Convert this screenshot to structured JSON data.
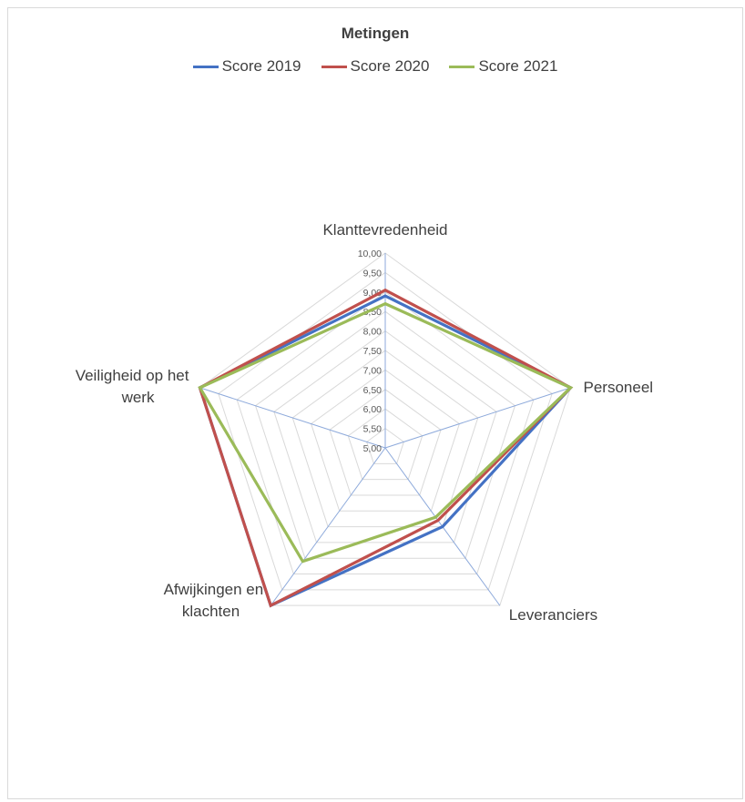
{
  "chart_data": {
    "type": "radar",
    "title": "Metingen",
    "categories": [
      "Klanttevredenheid",
      "Personeel",
      "Leveranciers",
      "Afwijkingen en klachten",
      "Veiligheid op het werk"
    ],
    "category_lines": [
      [
        "Klanttevredenheid"
      ],
      [
        "Personeel"
      ],
      [
        "Leveranciers"
      ],
      [
        "Afwijkingen en",
        "klachten"
      ],
      [
        "Veiligheid op het",
        "werk"
      ]
    ],
    "rlim": [
      5.0,
      10.0
    ],
    "ticks": [
      "5,00",
      "5,50",
      "6,00",
      "6,50",
      "7,00",
      "7,50",
      "8,00",
      "8,50",
      "9,00",
      "9,50",
      "10,00"
    ],
    "tick_values": [
      5.0,
      5.5,
      6.0,
      6.5,
      7.0,
      7.5,
      8.0,
      8.5,
      9.0,
      9.5,
      10.0
    ],
    "series": [
      {
        "name": "Score 2019",
        "color": "#4472c4",
        "values": [
          8.9,
          10.0,
          7.5,
          10.0,
          10.0
        ]
      },
      {
        "name": "Score 2020",
        "color": "#c0504d",
        "values": [
          9.05,
          10.0,
          7.3,
          10.0,
          10.0
        ]
      },
      {
        "name": "Score 2021",
        "color": "#9bbb59",
        "values": [
          8.7,
          10.0,
          7.2,
          8.6,
          10.0
        ]
      }
    ],
    "legend_position": "top",
    "grid": true
  }
}
